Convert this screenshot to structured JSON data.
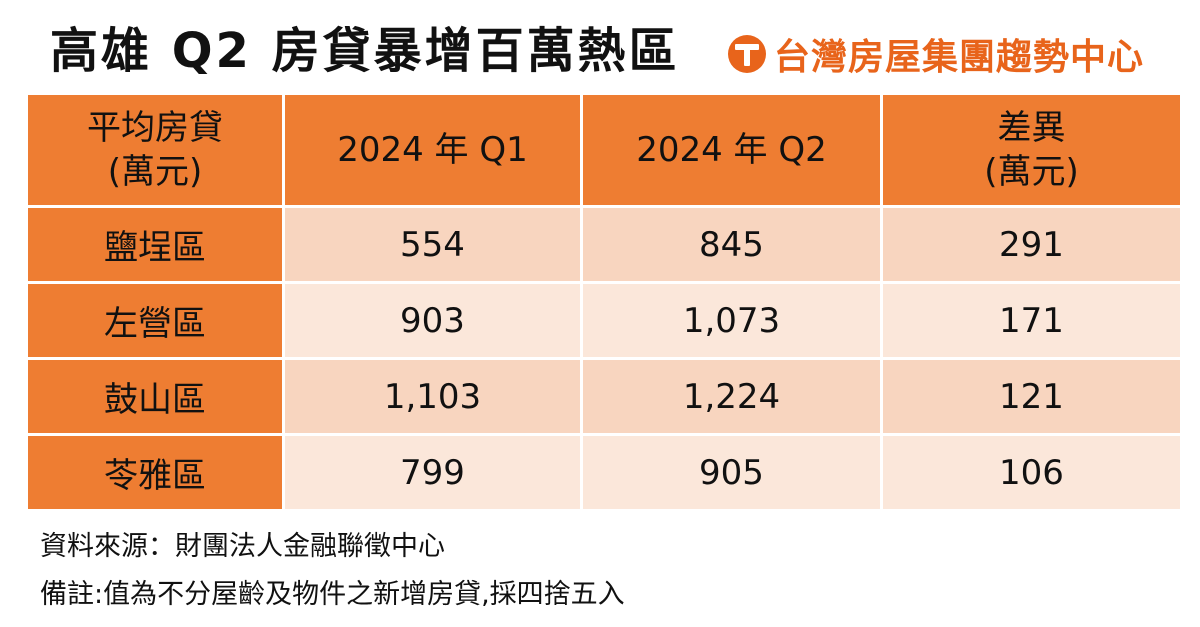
{
  "title": "高雄 Q2 房貸暴增百萬熱區",
  "brand": "台灣房屋集團趨勢中心",
  "colors": {
    "header_orange": "#ee7d32",
    "row_light_a": "#f8d5bf",
    "row_light_b": "#fbe7da",
    "brand_orange": "#e8641b"
  },
  "chart_data": {
    "type": "table",
    "title": "高雄 Q2 房貸暴增百萬熱區",
    "columns": [
      {
        "line1": "平均房貸",
        "line2": "(萬元)"
      },
      {
        "line1": "2024 年 Q1",
        "line2": ""
      },
      {
        "line1": "2024 年 Q2",
        "line2": ""
      },
      {
        "line1": "差異",
        "line2": "(萬元)"
      }
    ],
    "rows": [
      {
        "district": "鹽埕區",
        "q1": "554",
        "q2": "845",
        "diff": "291"
      },
      {
        "district": "左營區",
        "q1": "903",
        "q2": "1,073",
        "diff": "171"
      },
      {
        "district": "鼓山區",
        "q1": "1,103",
        "q2": "1,224",
        "diff": "121"
      },
      {
        "district": "苓雅區",
        "q1": "799",
        "q2": "905",
        "diff": "106"
      }
    ],
    "units": "萬元"
  },
  "notes": {
    "source": "資料來源：財團法人金融聯徵中心",
    "remark": "備註:值為不分屋齡及物件之新增房貸,採四捨五入"
  }
}
